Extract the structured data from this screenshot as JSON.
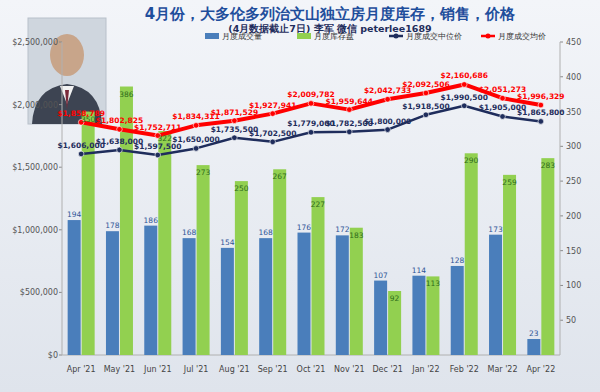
{
  "chart_data": {
    "type": "bar",
    "title": "4月份，大多伦多列治文山独立房月度库存，销售，价格",
    "subtitle": "(4月数据截止7日) 李军 微信 peterlee1689",
    "categories": [
      "Apr '21",
      "May '21",
      "Jun '21",
      "Jul '21",
      "Aug '21",
      "Sep '21",
      "Oct '21",
      "Nov '21",
      "Dec '21",
      "Jan '22",
      "Feb '22",
      "Mar '22",
      "Apr '22"
    ],
    "series": [
      {
        "name": "月度成交量",
        "type": "bar",
        "color": "#4a7ebb",
        "axis": "y2",
        "values": [
          194,
          178,
          186,
          168,
          154,
          168,
          176,
          172,
          107,
          114,
          128,
          173,
          23
        ]
      },
      {
        "name": "月度库存盘",
        "type": "bar",
        "color": "#92d050",
        "axis": "y2",
        "values": [
          350,
          386,
          322,
          273,
          250,
          267,
          227,
          183,
          92,
          113,
          290,
          259,
          283
        ]
      },
      {
        "name": "月度成交中位价",
        "type": "line",
        "color": "#1f2d5c",
        "marker": "circle",
        "values": [
          1606000,
          1638000,
          1597500,
          1650000,
          1735500,
          1702500,
          1779000,
          1782500,
          1800000,
          1918500,
          1990500,
          1905000,
          1865800
        ],
        "value_labels": [
          "$1,606,000",
          "$1,638,000",
          "$1,597,500",
          "$1,650,000",
          "$1,735,500",
          "$1,702,500",
          "$1,779,000",
          "$1,782,500",
          "$1,800,000",
          "$1,918,500",
          "$1,990,500",
          "$1,905,000",
          "$1,865,800"
        ]
      },
      {
        "name": "月度成交均价",
        "type": "line",
        "color": "#ff0000",
        "marker": "circle",
        "values": [
          1858789,
          1802825,
          1752711,
          1834311,
          1871529,
          1927941,
          2009782,
          1959644,
          2042733,
          2092506,
          2160686,
          2051273,
          1996329
        ],
        "value_labels": [
          "$1,858,789",
          "$1,802,825",
          "$1,752,711",
          "$1,834,311",
          "$1,871,529",
          "$1,927,941",
          "$2,009,782",
          "$1,959,644",
          "$2,042,733",
          "$2,092,506",
          "$2,160,686",
          "$2,051,273",
          "$1,996,329"
        ]
      }
    ],
    "ylim": [
      0,
      2500000
    ],
    "yticks": [
      {
        "value": 0,
        "label": "$0"
      },
      {
        "value": 500000,
        "label": "$500,000"
      },
      {
        "value": 1000000,
        "label": "$1,000,000"
      },
      {
        "value": 1500000,
        "label": "$1,500,000"
      },
      {
        "value": 2000000,
        "label": "$2,000,000"
      },
      {
        "value": 2500000,
        "label": "$2,500,000"
      }
    ],
    "y2lim": [
      0,
      450
    ],
    "y2ticks": [
      50,
      100,
      150,
      200,
      250,
      300,
      350,
      400,
      450
    ],
    "data_labels": true,
    "legend": "top",
    "grid": false
  }
}
